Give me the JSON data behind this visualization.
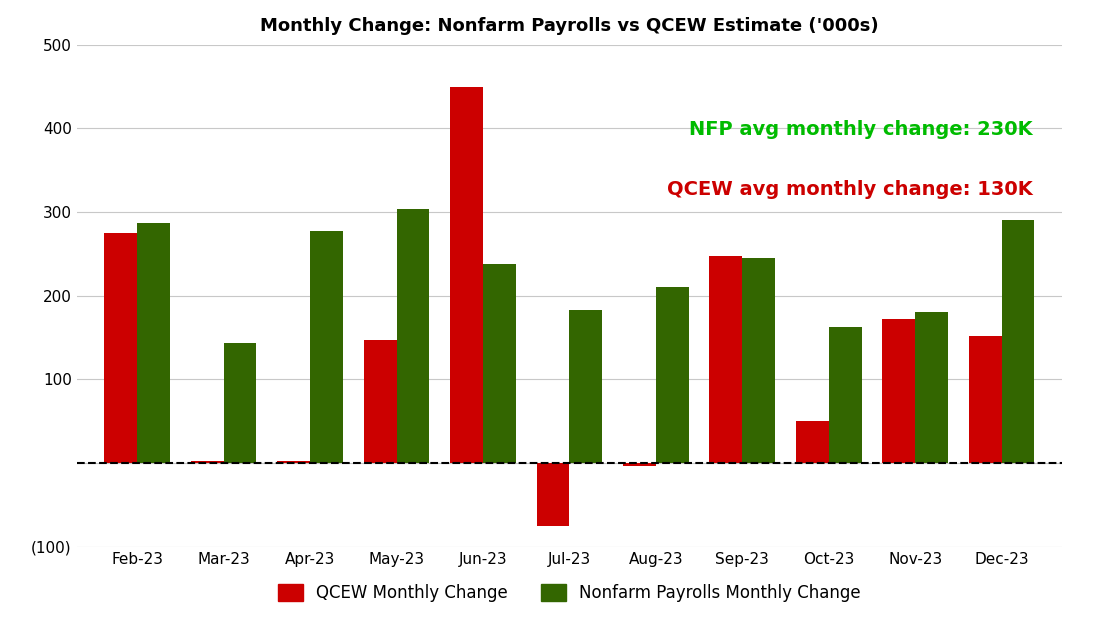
{
  "title": "Monthly Change: Nonfarm Payrolls vs QCEW Estimate ('000s)",
  "months": [
    "Feb-23",
    "Mar-23",
    "Apr-23",
    "May-23",
    "Jun-23",
    "Jul-23",
    "Aug-23",
    "Sep-23",
    "Oct-23",
    "Nov-23",
    "Dec-23"
  ],
  "qcew": [
    275,
    3,
    3,
    147,
    449,
    -75,
    -3,
    247,
    50,
    172,
    152
  ],
  "nfp": [
    287,
    143,
    277,
    303,
    238,
    183,
    210,
    245,
    163,
    180,
    290
  ],
  "qcew_color": "#cc0000",
  "nfp_color": "#336600",
  "annotation_nfp_text": "NFP avg monthly change: 230K",
  "annotation_qcew_text": "QCEW avg monthly change: 130K",
  "annotation_nfp_color": "#00bb00",
  "annotation_qcew_color": "#cc0000",
  "ylim": [
    -100,
    500
  ],
  "yticks": [
    -100,
    0,
    100,
    200,
    300,
    400,
    500
  ],
  "ytick_labels": [
    "(100)",
    "",
    "100",
    "200",
    "300",
    "400",
    "500"
  ],
  "legend_qcew": "QCEW Monthly Change",
  "legend_nfp": "Nonfarm Payrolls Monthly Change",
  "bar_width": 0.38,
  "background_color": "#ffffff",
  "grid_color": "#c8c8c8",
  "title_fontsize": 13,
  "annotation_fontsize": 14,
  "legend_fontsize": 12,
  "tick_fontsize": 11
}
